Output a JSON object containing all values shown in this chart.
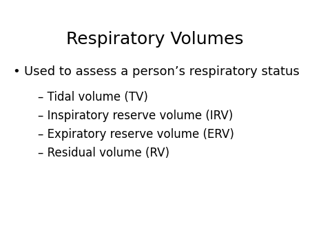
{
  "title": "Respiratory Volumes",
  "background_color": "#ffffff",
  "title_fontsize": 18,
  "bullet_text": "Used to assess a person’s respiratory status",
  "bullet_fontsize": 13,
  "sub_items": [
    "– Tidal volume (TV)",
    "– Inspiratory reserve volume (IRV)",
    "– Expiratory reserve volume (ERV)",
    "– Residual volume (RV)"
  ],
  "sub_fontsize": 12,
  "text_color": "#000000",
  "font_family": "DejaVu Sans"
}
